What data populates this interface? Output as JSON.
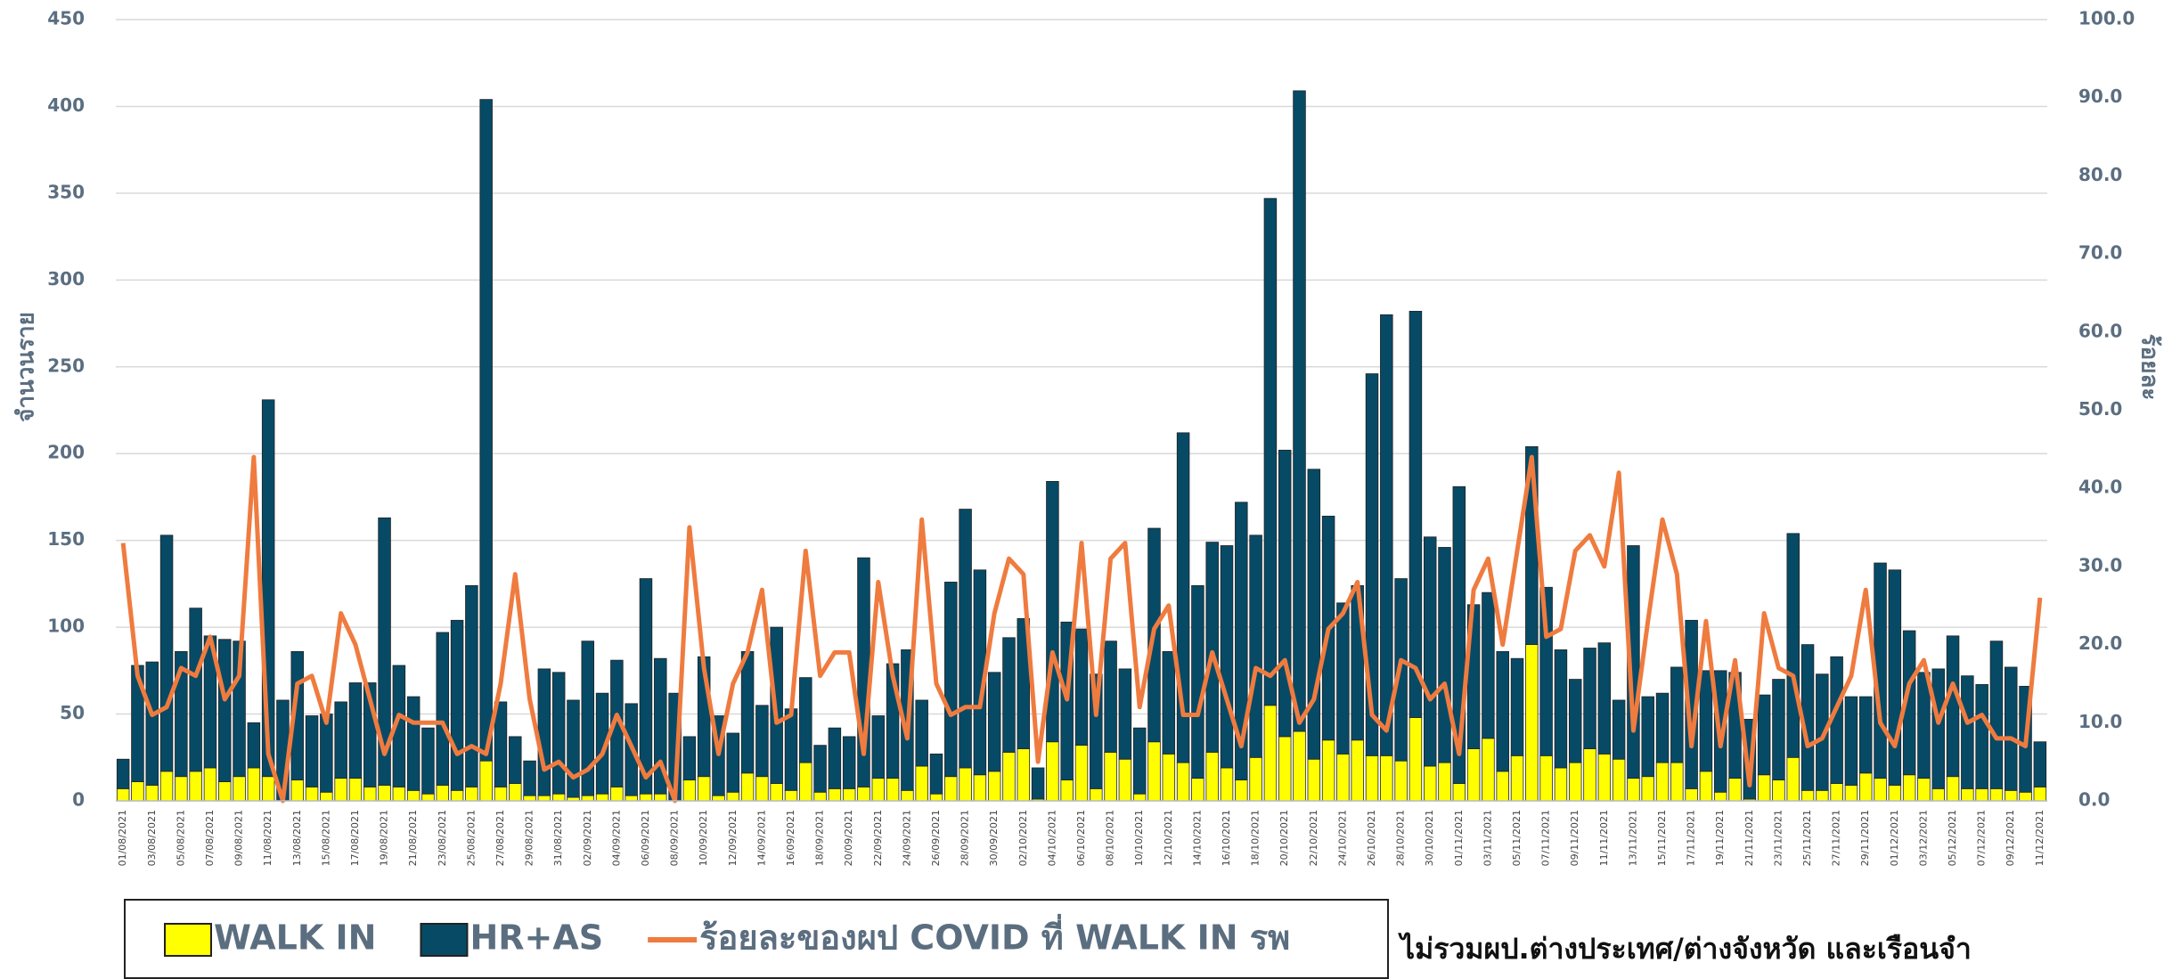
{
  "chart_data": {
    "type": "bar",
    "stacked": true,
    "ylabel": "จำนวนราย",
    "y2label": "ร้อยละ",
    "note": "ไม่รวมผป.ต่างประเทศ/ต่างจังหวัด และเรือนจำ",
    "categories": [
      "01/08/2021",
      null,
      "03/08/2021",
      null,
      "05/08/2021",
      null,
      "07/08/2021",
      null,
      "09/08/2021",
      null,
      "11/08/2021",
      null,
      "13/08/2021",
      null,
      "15/08/2021",
      null,
      "17/08/2021",
      null,
      "19/08/2021",
      null,
      "21/08/2021",
      null,
      "23/08/2021",
      null,
      "25/08/2021",
      null,
      "27/08/2021",
      null,
      "29/08/2021",
      null,
      "31/08/2021",
      null,
      "02/09/2021",
      null,
      "04/09/2021",
      null,
      "06/09/2021",
      null,
      "08/09/2021",
      null,
      "10/09/2021",
      null,
      "12/09/2021",
      null,
      "14/09/2021",
      null,
      "16/09/2021",
      null,
      "18/09/2021",
      null,
      "20/09/2021",
      null,
      "22/09/2021",
      null,
      "24/09/2021",
      null,
      "26/09/2021",
      null,
      "28/09/2021",
      null,
      "30/09/2021",
      null,
      "02/10/2021",
      null,
      "04/10/2021",
      null,
      "06/10/2021",
      null,
      "08/10/2021",
      null,
      "10/10/2021",
      null,
      "12/10/2021",
      null,
      "14/10/2021",
      null,
      "16/10/2021",
      null,
      "18/10/2021",
      null,
      "20/10/2021",
      null,
      "22/10/2021",
      null,
      "24/10/2021",
      null,
      "26/10/2021",
      null,
      "28/10/2021",
      null,
      "30/10/2021",
      null,
      "01/11/2021",
      null,
      "03/11/2021",
      null,
      "05/11/2021",
      null,
      "07/11/2021",
      null,
      "09/11/2021",
      null,
      "11/11/2021",
      null,
      "13/11/2021",
      null,
      "15/11/2021",
      null,
      "17/11/2021",
      null,
      "19/11/2021",
      null,
      "21/11/2021",
      null,
      "23/11/2021",
      null,
      "25/11/2021",
      null,
      "27/11/2021",
      null,
      "29/11/2021",
      null,
      "01/12/2021",
      null,
      "03/12/2021",
      null,
      "05/12/2021",
      null,
      "07/12/2021",
      null,
      "09/12/2021",
      null,
      "11/12/2021"
    ],
    "series": [
      {
        "name": "WALK IN",
        "color": "#ffff00",
        "values": [
          7,
          11,
          9,
          17,
          14,
          17,
          19,
          11,
          14,
          19,
          14,
          0,
          12,
          8,
          5,
          13,
          13,
          8,
          9,
          8,
          6,
          4,
          9,
          6,
          8,
          23,
          8,
          10,
          3,
          3,
          4,
          2,
          3,
          4,
          8,
          3,
          4,
          4,
          0,
          12,
          14,
          3,
          5,
          16,
          14,
          10,
          6,
          22,
          5,
          7,
          7,
          8,
          13,
          13,
          6,
          20,
          4,
          14,
          19,
          15,
          17,
          28,
          30,
          1,
          34,
          12,
          32,
          7,
          28,
          24,
          4,
          34,
          27,
          22,
          13,
          28,
          19,
          12,
          25,
          55,
          37,
          40,
          24,
          35,
          27,
          35,
          26,
          26,
          23,
          48,
          20,
          22,
          10,
          30,
          36,
          17,
          26,
          90,
          26,
          19,
          22,
          30,
          27,
          24,
          13,
          14,
          22,
          22,
          7,
          17,
          5,
          13,
          1,
          15,
          12,
          25,
          6,
          6,
          10,
          9,
          16,
          13,
          9,
          15,
          13,
          7,
          14,
          7,
          7,
          7,
          6,
          5,
          8
        ]
      },
      {
        "name": "HR+AS",
        "color": "#074a66",
        "values": [
          17,
          67,
          71,
          136,
          72,
          94,
          76,
          82,
          78,
          26,
          217,
          58,
          74,
          41,
          45,
          44,
          55,
          60,
          154,
          70,
          54,
          38,
          88,
          98,
          116,
          381,
          49,
          27,
          20,
          73,
          70,
          56,
          89,
          58,
          73,
          53,
          124,
          78,
          62,
          25,
          69,
          46,
          34,
          70,
          41,
          90,
          47,
          49,
          27,
          35,
          30,
          132,
          36,
          66,
          81,
          38,
          23,
          112,
          149,
          118,
          57,
          66,
          75,
          18,
          150,
          91,
          67,
          66,
          64,
          52,
          38,
          123,
          59,
          190,
          111,
          121,
          128,
          160,
          128,
          292,
          165,
          369,
          167,
          129,
          87,
          89,
          220,
          254,
          105,
          234,
          132,
          124,
          171,
          83,
          84,
          69,
          56,
          114,
          97,
          68,
          48,
          58,
          64,
          34,
          134,
          46,
          40,
          55,
          97,
          58,
          70,
          61,
          46,
          46,
          58,
          129,
          84,
          67,
          73,
          51,
          44,
          124,
          124,
          83,
          61,
          69,
          81,
          65,
          60,
          85,
          71,
          61,
          26
        ]
      },
      {
        "name": "ร้อยละของผป COVID ที่ WALK IN รพ",
        "color": "#ef7b3f",
        "axis": "y2",
        "values": [
          33,
          16,
          11,
          12,
          17,
          16,
          21,
          13,
          16,
          44,
          6,
          0,
          15,
          16,
          10,
          24,
          20,
          13,
          6,
          11,
          10,
          10,
          10,
          6,
          7,
          6,
          15,
          29,
          13,
          4,
          5,
          3,
          4,
          6,
          11,
          7,
          3,
          5,
          0,
          35,
          17,
          6,
          15,
          19,
          27,
          10,
          11,
          32,
          16,
          19,
          19,
          6,
          28,
          16,
          8,
          36,
          15,
          11,
          12,
          12,
          24,
          31,
          29,
          5,
          19,
          13,
          33,
          11,
          31,
          33,
          12,
          22,
          25,
          11,
          11,
          19,
          13,
          7,
          17,
          16,
          18,
          10,
          13,
          22,
          24,
          28,
          11,
          9,
          18,
          17,
          13,
          15,
          6,
          27,
          31,
          20,
          32,
          44,
          21,
          22,
          32,
          34,
          30,
          42,
          9,
          23,
          36,
          29,
          7,
          23,
          7,
          18,
          2,
          24,
          17,
          16,
          7,
          8,
          12,
          16,
          27,
          10,
          7,
          15,
          18,
          10,
          15,
          10,
          11,
          8,
          8,
          7,
          26
        ]
      }
    ],
    "ylim": [
      0,
      450
    ],
    "yticks": [
      0,
      50,
      100,
      150,
      200,
      250,
      300,
      350,
      400,
      450
    ],
    "y2lim": [
      0,
      100
    ],
    "y2ticks": [
      {
        "value": 0,
        "label": "0.0"
      },
      {
        "value": 10,
        "label": "10.0"
      },
      {
        "value": 20,
        "label": "20.0"
      },
      {
        "value": 30,
        "label": "30.0"
      },
      {
        "value": 40,
        "label": "40.0"
      },
      {
        "value": 50,
        "label": "50.0"
      },
      {
        "value": 60,
        "label": "60.0"
      },
      {
        "value": 70,
        "label": "70.0"
      },
      {
        "value": 80,
        "label": "80.0"
      },
      {
        "value": 90,
        "label": "90.0"
      },
      {
        "value": 100,
        "label": "100.0"
      }
    ],
    "grid": true
  }
}
